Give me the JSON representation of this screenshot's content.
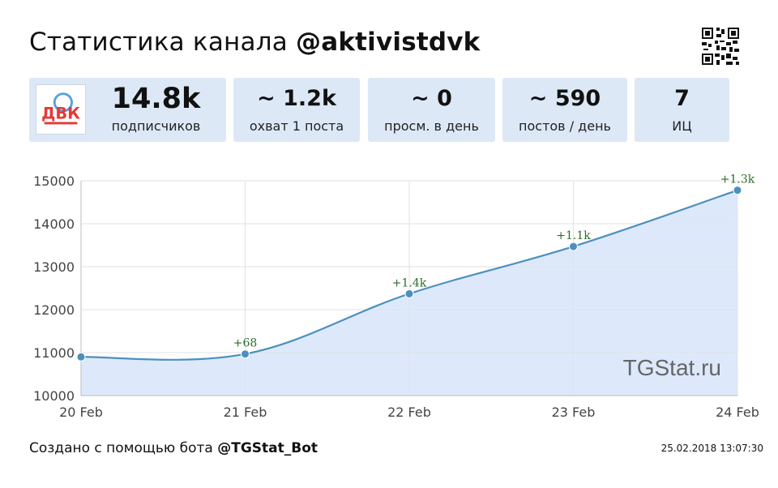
{
  "header": {
    "title_prefix": "Статистика канала",
    "channel": "@aktivistdvk"
  },
  "qr_icon": "qr-code-icon",
  "logo": {
    "text": "ДВК",
    "icon": "channel-avatar-icon",
    "color": "#e53935"
  },
  "stats": [
    {
      "value": "14.8k",
      "label": "подписчиков"
    },
    {
      "value": "~ 1.2k",
      "label": "охват 1 поста"
    },
    {
      "value": "~ 0",
      "label": "просм. в день"
    },
    {
      "value": "~ 590",
      "label": "постов / день"
    },
    {
      "value": "7",
      "label": "ИЦ"
    }
  ],
  "chart_data": {
    "type": "area",
    "title": "",
    "xlabel": "",
    "ylabel": "",
    "categories": [
      "20 Feb",
      "21 Feb",
      "22 Feb",
      "23 Feb",
      "24 Feb"
    ],
    "values": [
      10900,
      10968,
      12370,
      13470,
      14780
    ],
    "data_labels": [
      "",
      "+68",
      "+1.4k",
      "+1.1k",
      "+1.3k"
    ],
    "ylim": [
      10000,
      15000
    ],
    "yticks": [
      10000,
      11000,
      12000,
      13000,
      14000,
      15000
    ],
    "grid": true,
    "watermark": "TGStat.ru",
    "line_color": "#4b90bf",
    "fill_color": "#dde9fb",
    "label_color": "#2e6b2e"
  },
  "footer": {
    "created_prefix": "Создано с помощью бота",
    "bot": "@TGStat_Bot",
    "timestamp": "25.02.2018 13:07:30"
  }
}
